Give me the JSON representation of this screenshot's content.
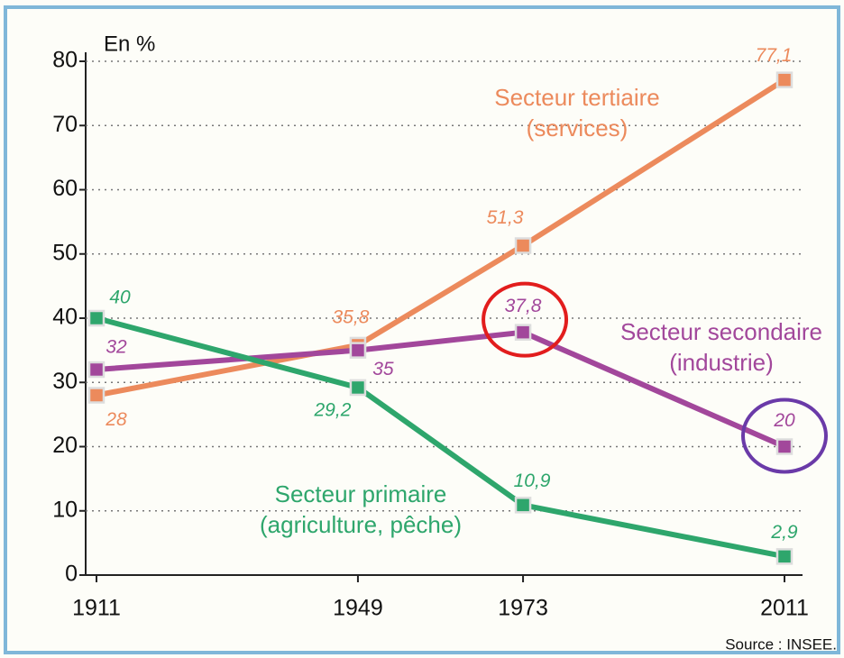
{
  "chart_data": {
    "type": "line",
    "y_label": "En %",
    "source": "Source : INSEE.",
    "x": [
      1911,
      1949,
      1973,
      2011
    ],
    "xlim": [
      1911,
      2011
    ],
    "xticks": [
      1911,
      1949,
      1973,
      2011
    ],
    "ylim": [
      0,
      80
    ],
    "yticks": [
      0,
      10,
      20,
      30,
      40,
      50,
      60,
      70,
      80
    ],
    "grid": true,
    "series": [
      {
        "name": "Secteur tertiaire (services)",
        "color": "#ec8a5c",
        "values": [
          28,
          35.8,
          51.3,
          77.1
        ],
        "value_labels": [
          "28",
          "35,8",
          "51,3",
          "77,1"
        ]
      },
      {
        "name": "Secteur secondaire (industrie)",
        "color": "#a2479b",
        "values": [
          32,
          35,
          37.8,
          20
        ],
        "value_labels": [
          "32",
          "35",
          "37,8",
          "20"
        ]
      },
      {
        "name": "Secteur primaire (agriculture, pêche)",
        "color": "#2ea66c",
        "values": [
          40,
          29.2,
          10.9,
          2.9
        ],
        "value_labels": [
          "40",
          "29,2",
          "10,9",
          "2,9"
        ]
      }
    ]
  }
}
